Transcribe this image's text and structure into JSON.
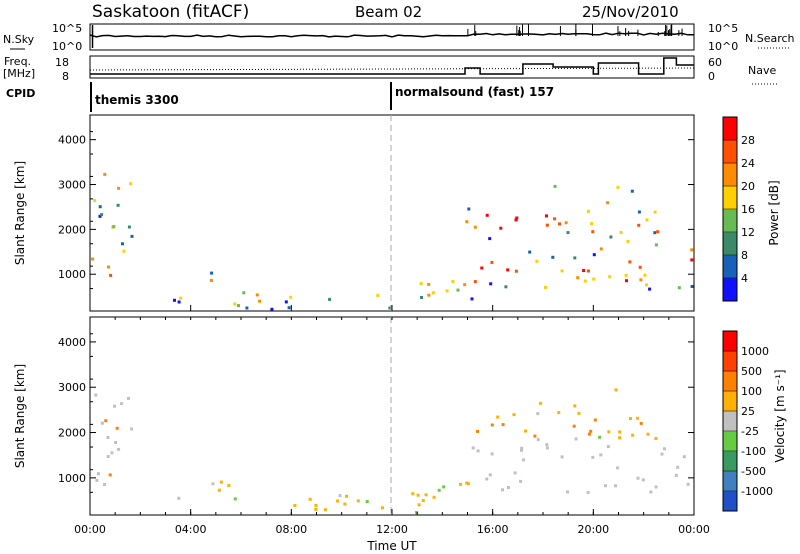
{
  "header": {
    "station": "Saskatoon (fitACF)",
    "beam": "Beam 02",
    "date": "25/Nov/2010"
  },
  "status_panels": {
    "nsky_label": "N.Sky",
    "nsky_ticks": [
      "10^5",
      "10^0"
    ],
    "nsearch_label": "N.Search",
    "nsearch_ticks": [
      "10^5",
      "10^0"
    ],
    "freq_label_1": "Freq.",
    "freq_label_2": "[MHz]",
    "freq_ticks": [
      "18",
      "8"
    ],
    "nave_label": "Nave",
    "nave_ticks": [
      "60",
      "0"
    ],
    "cpid_label": "CPID",
    "programs": [
      {
        "name": "themis 3300",
        "start_hour": 0.0
      },
      {
        "name": "normalsound (fast) 157",
        "start_hour": 12.0
      }
    ]
  },
  "chart_data": [
    {
      "type": "heatmap",
      "title": "",
      "ylabel": "Slant Range [km]",
      "xlabel": "",
      "x_range_hours": [
        0,
        24
      ],
      "ylim": [
        180,
        4550
      ],
      "y_ticks": [
        "1000",
        "2000",
        "3000",
        "4000"
      ],
      "y_tick_values": [
        1000,
        2000,
        3000,
        4000
      ],
      "colorbar": {
        "label": "Power [dB]",
        "ticks": [
          "4",
          "8",
          "12",
          "16",
          "20",
          "24",
          "28"
        ],
        "colors": [
          "#1010ff",
          "#1860b8",
          "#3a8a6a",
          "#66bb55",
          "#ffd000",
          "#ff8c00",
          "#ff5000",
          "#ff0000"
        ]
      }
    },
    {
      "type": "heatmap",
      "title": "",
      "ylabel": "Slant Range [km]",
      "xlabel": "Time UT",
      "x_range_hours": [
        0,
        24
      ],
      "ylim": [
        180,
        4550
      ],
      "y_ticks": [
        "1000",
        "2000",
        "3000",
        "4000"
      ],
      "y_tick_values": [
        1000,
        2000,
        3000,
        4000
      ],
      "x_ticks": [
        "00:00",
        "04:00",
        "08:00",
        "12:00",
        "16:00",
        "20:00",
        "00:00"
      ],
      "colorbar": {
        "label": "Velocity [m s⁻¹]",
        "ticks": [
          "1000",
          "500",
          "100",
          "25",
          "-25",
          "-100",
          "-500",
          "-1000"
        ],
        "colors": [
          "#2050c8",
          "#4080c0",
          "#3a9a60",
          "#66cc44",
          "#c0c0c0",
          "#ffb000",
          "#ff8000",
          "#ff4000",
          "#ff0000"
        ]
      }
    }
  ]
}
